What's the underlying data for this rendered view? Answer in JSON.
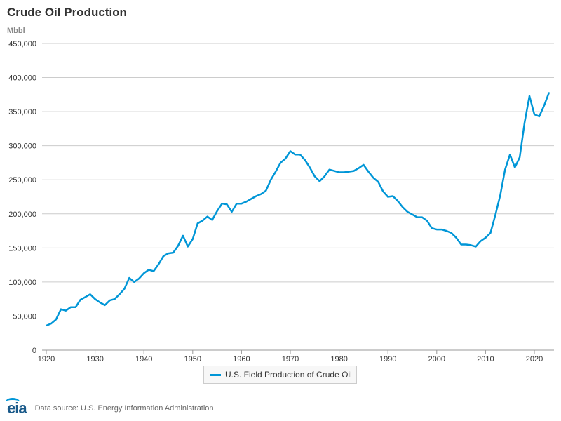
{
  "title": "Crude Oil Production",
  "source": "Data source: U.S. Energy Information Administration",
  "logo_text": "eia",
  "colors": {
    "series": "#0096d7",
    "grid": "#cccccc",
    "logo": "#1a5a8a"
  },
  "chart_data": {
    "type": "line",
    "title": "Crude Oil Production",
    "ylabel": "Mbbl",
    "xlabel": "",
    "xlim": [
      1920,
      2023
    ],
    "ylim": [
      0,
      450000
    ],
    "x_ticks": [
      1920,
      1930,
      1940,
      1950,
      1960,
      1970,
      1980,
      1990,
      2000,
      2010,
      2020
    ],
    "y_ticks": [
      0,
      50000,
      100000,
      150000,
      200000,
      250000,
      300000,
      350000,
      400000,
      450000
    ],
    "y_tick_labels": [
      "0",
      "50,000",
      "100,000",
      "150,000",
      "200,000",
      "250,000",
      "300,000",
      "350,000",
      "400,000",
      "450,000"
    ],
    "grid": "horizontal",
    "legend_position": "bottom-center",
    "series": [
      {
        "name": "U.S. Field Production of Crude Oil",
        "x": [
          1920,
          1921,
          1922,
          1923,
          1924,
          1925,
          1926,
          1927,
          1928,
          1929,
          1930,
          1931,
          1932,
          1933,
          1934,
          1935,
          1936,
          1937,
          1938,
          1939,
          1940,
          1941,
          1942,
          1943,
          1944,
          1945,
          1946,
          1947,
          1948,
          1949,
          1950,
          1951,
          1952,
          1953,
          1954,
          1955,
          1956,
          1957,
          1958,
          1959,
          1960,
          1961,
          1962,
          1963,
          1964,
          1965,
          1966,
          1967,
          1968,
          1969,
          1970,
          1971,
          1972,
          1973,
          1974,
          1975,
          1976,
          1977,
          1978,
          1979,
          1980,
          1981,
          1982,
          1983,
          1984,
          1985,
          1986,
          1987,
          1988,
          1989,
          1990,
          1991,
          1992,
          1993,
          1994,
          1995,
          1996,
          1997,
          1998,
          1999,
          2000,
          2001,
          2002,
          2003,
          2004,
          2005,
          2006,
          2007,
          2008,
          2009,
          2010,
          2011,
          2012,
          2013,
          2014,
          2015,
          2016,
          2017,
          2018,
          2019,
          2020,
          2021,
          2022,
          2023
        ],
        "values": [
          36000,
          39000,
          45000,
          60000,
          58000,
          63000,
          63000,
          74000,
          78000,
          82000,
          75000,
          70000,
          66000,
          73000,
          75000,
          82000,
          90000,
          106000,
          100000,
          105000,
          113000,
          118000,
          116000,
          126000,
          138000,
          142000,
          143000,
          153000,
          168000,
          152000,
          163000,
          186000,
          190000,
          196000,
          191000,
          204000,
          215000,
          214000,
          203000,
          215000,
          215000,
          218000,
          222000,
          226000,
          229000,
          234000,
          250000,
          262000,
          275000,
          281000,
          292000,
          287000,
          287000,
          279000,
          268000,
          255000,
          248000,
          255000,
          265000,
          263000,
          261000,
          261000,
          262000,
          263000,
          267000,
          272000,
          262000,
          253000,
          247000,
          233000,
          225000,
          226000,
          219000,
          210000,
          203000,
          199000,
          195000,
          195000,
          190000,
          179000,
          177000,
          177000,
          175000,
          172000,
          165000,
          155000,
          155000,
          154000,
          152000,
          160000,
          165000,
          172000,
          198000,
          227000,
          265000,
          287000,
          268000,
          283000,
          334000,
          373000,
          346000,
          343000,
          359000,
          378000
        ]
      }
    ]
  }
}
